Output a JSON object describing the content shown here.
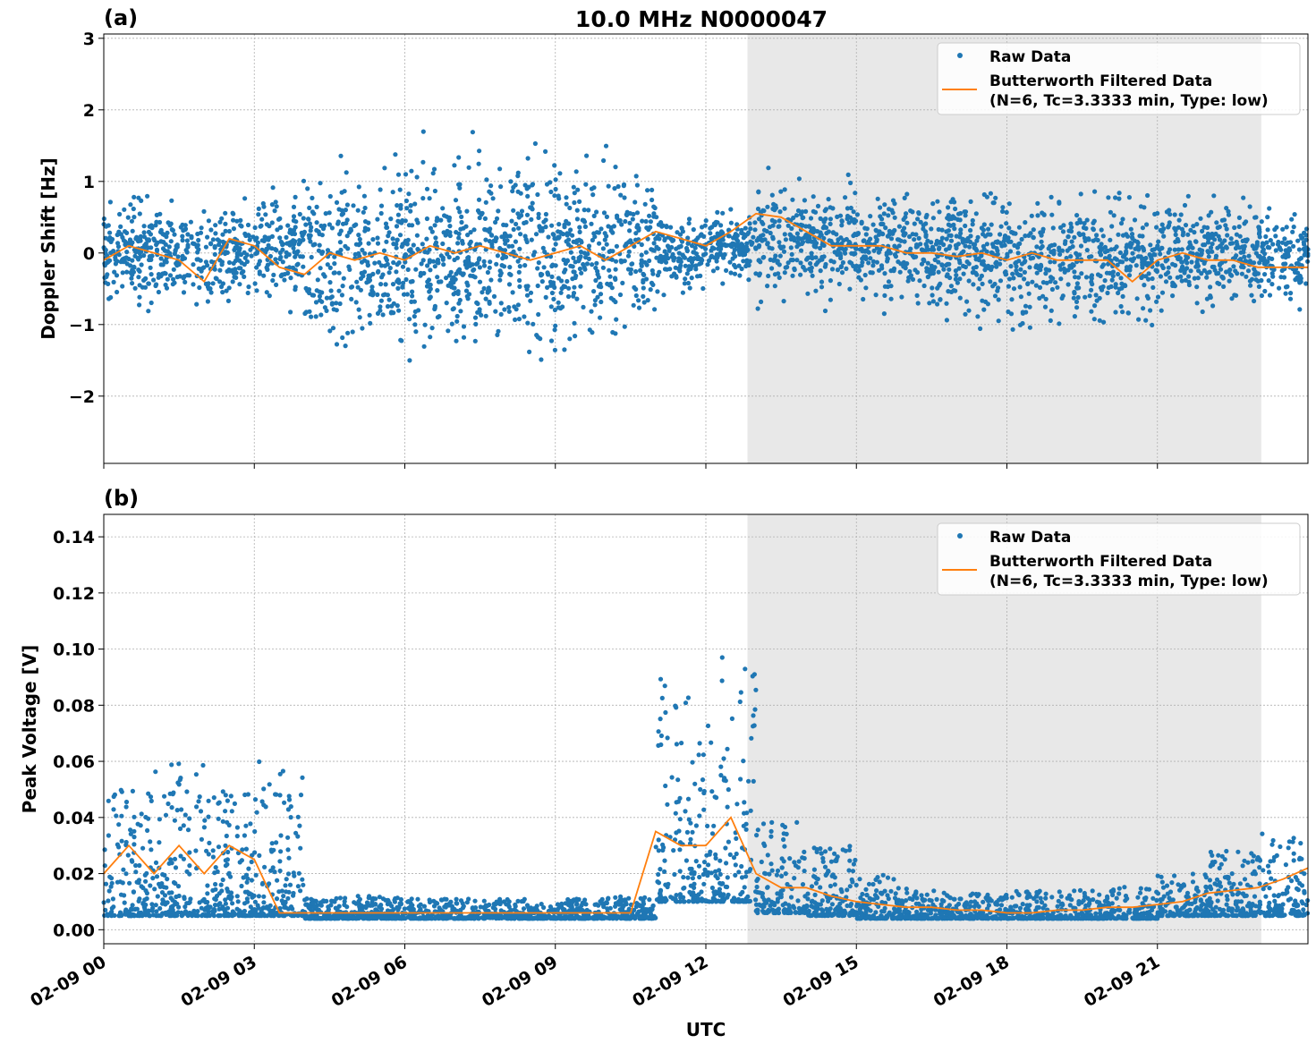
{
  "title": "10.0 MHz N0000047",
  "xlabel": "UTC",
  "x_ticks": [
    "02-09 00",
    "02-09 03",
    "02-09 06",
    "02-09 09",
    "02-09 12",
    "02-09 15",
    "02-09 18",
    "02-09 21"
  ],
  "colors": {
    "raw": "#1f77b4",
    "filtered": "#ff7f0e",
    "shade": "#e8e8e8"
  },
  "chart_data": [
    {
      "type": "scatter",
      "panel_label": "(a)",
      "ylabel": "Doppler Shift [Hz]",
      "xlim_hours": [
        0,
        24
      ],
      "ylim": [
        -2.94,
        3.06
      ],
      "y_ticks": [
        -2,
        -1,
        0,
        1,
        2,
        3
      ],
      "y_tick_labels": [
        "−2",
        "−1",
        "0",
        "1",
        "2",
        "3"
      ],
      "grid": true,
      "legend": "top-right",
      "shaded_span_hours": [
        12.83,
        23.07
      ],
      "series": [
        {
          "name": "Raw Data",
          "kind": "points",
          "hourly_range": [
            [
              -1,
              1
            ],
            [
              -1,
              1
            ],
            [
              -1,
              1
            ],
            [
              -1,
              1.2
            ],
            [
              -1.9,
              1.7
            ],
            [
              -1.9,
              1.7
            ],
            [
              -1.9,
              1.8
            ],
            [
              -2,
              1.9
            ],
            [
              -1.9,
              1.9
            ],
            [
              -1.9,
              1.9
            ],
            [
              -1.7,
              1.8
            ],
            [
              -0.7,
              0.8
            ],
            [
              -0.6,
              0.8
            ],
            [
              -1.0,
              1.4
            ],
            [
              -1.0,
              1.3
            ],
            [
              -1.1,
              1.3
            ],
            [
              -1.3,
              1.3
            ],
            [
              -1.3,
              1.3
            ],
            [
              -1.4,
              1.3
            ],
            [
              -1.5,
              1.2
            ],
            [
              -1.4,
              1.2
            ],
            [
              -1.2,
              1.1
            ],
            [
              -1.0,
              1.0
            ],
            [
              -1.0,
              0.9
            ]
          ]
        },
        {
          "name": "Butterworth Filtered Data",
          "name_line2": "(N=6, Tc=3.3333 min, Type: low)",
          "kind": "line",
          "x_step_hours": 0.5,
          "values": [
            -0.1,
            0.1,
            0.0,
            -0.1,
            -0.4,
            0.2,
            0.1,
            -0.2,
            -0.3,
            0.0,
            -0.1,
            0.0,
            -0.1,
            0.1,
            0.0,
            0.1,
            0.0,
            -0.1,
            0.0,
            0.1,
            -0.1,
            0.1,
            0.3,
            0.2,
            0.1,
            0.3,
            0.55,
            0.5,
            0.3,
            0.1,
            0.1,
            0.1,
            0.0,
            0.0,
            -0.05,
            0.0,
            -0.1,
            0.0,
            -0.1,
            -0.1,
            -0.1,
            -0.4,
            -0.1,
            0.0,
            -0.1,
            -0.1,
            -0.2,
            -0.2,
            -0.2
          ]
        }
      ]
    },
    {
      "type": "scatter",
      "panel_label": "(b)",
      "ylabel": "Peak Voltage [V]",
      "xlim_hours": [
        0,
        24
      ],
      "ylim": [
        -0.005,
        0.148
      ],
      "y_ticks": [
        0,
        0.02,
        0.04,
        0.06,
        0.08,
        0.1,
        0.12,
        0.14
      ],
      "y_tick_labels": [
        "0.00",
        "0.02",
        "0.04",
        "0.06",
        "0.08",
        "0.10",
        "0.12",
        "0.14"
      ],
      "grid": true,
      "legend": "top-right",
      "shaded_span_hours": [
        12.83,
        23.07
      ],
      "series": [
        {
          "name": "Raw Data",
          "kind": "points",
          "hourly_range": [
            [
              0.005,
              0.05
            ],
            [
              0.005,
              0.06
            ],
            [
              0.005,
              0.05
            ],
            [
              0.005,
              0.06
            ],
            [
              0.004,
              0.012
            ],
            [
              0.004,
              0.012
            ],
            [
              0.004,
              0.011
            ],
            [
              0.004,
              0.011
            ],
            [
              0.004,
              0.011
            ],
            [
              0.004,
              0.011
            ],
            [
              0.004,
              0.012
            ],
            [
              0.01,
              0.09
            ],
            [
              0.01,
              0.1
            ],
            [
              0.006,
              0.04
            ],
            [
              0.005,
              0.03
            ],
            [
              0.004,
              0.02
            ],
            [
              0.004,
              0.014
            ],
            [
              0.004,
              0.013
            ],
            [
              0.004,
              0.014
            ],
            [
              0.004,
              0.014
            ],
            [
              0.004,
              0.016
            ],
            [
              0.005,
              0.02
            ],
            [
              0.005,
              0.028
            ],
            [
              0.005,
              0.035
            ]
          ]
        },
        {
          "name": "Butterworth Filtered Data",
          "name_line2": "(N=6, Tc=3.3333 min, Type: low)",
          "kind": "line",
          "x_step_hours": 0.5,
          "values": [
            0.02,
            0.03,
            0.02,
            0.03,
            0.02,
            0.03,
            0.025,
            0.006,
            0.006,
            0.006,
            0.006,
            0.006,
            0.006,
            0.006,
            0.006,
            0.006,
            0.006,
            0.006,
            0.006,
            0.006,
            0.006,
            0.006,
            0.035,
            0.03,
            0.03,
            0.04,
            0.02,
            0.015,
            0.015,
            0.012,
            0.01,
            0.009,
            0.008,
            0.008,
            0.007,
            0.007,
            0.006,
            0.006,
            0.007,
            0.007,
            0.008,
            0.008,
            0.009,
            0.01,
            0.013,
            0.014,
            0.015,
            0.018,
            0.022
          ]
        }
      ]
    }
  ]
}
